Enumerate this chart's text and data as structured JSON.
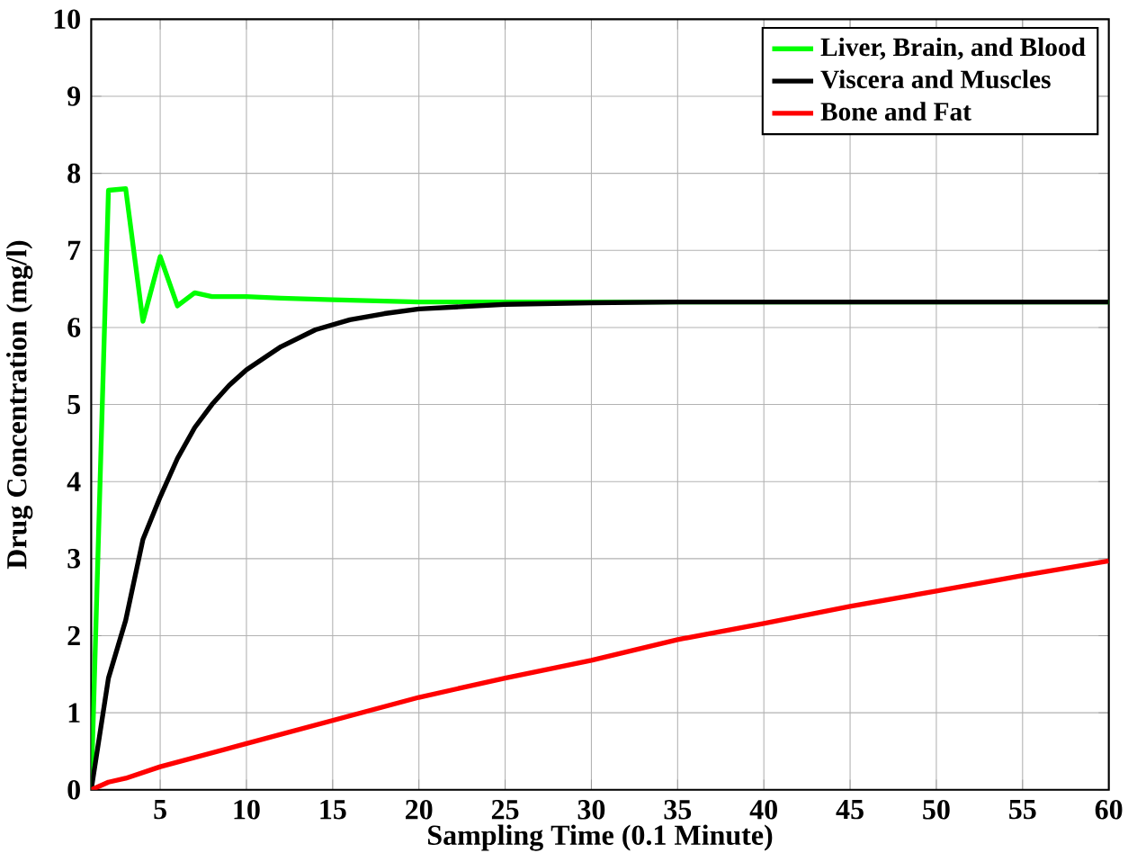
{
  "chart_data": {
    "type": "line",
    "xlabel": "Sampling Time (0.1 Minute)",
    "ylabel": "Drug Concentration (mg/l)",
    "xlim": [
      1,
      60
    ],
    "ylim": [
      0,
      10
    ],
    "xticks": [
      5,
      10,
      15,
      20,
      25,
      30,
      35,
      40,
      45,
      50,
      55,
      60
    ],
    "yticks": [
      0,
      1,
      2,
      3,
      4,
      5,
      6,
      7,
      8,
      9,
      10
    ],
    "grid": true,
    "legend": "top right",
    "marker": "none",
    "line_style": "solid",
    "series": [
      {
        "name": "Liver, Brain, and Blood",
        "color": "#00ff00",
        "x": [
          1,
          2,
          3,
          4,
          5,
          6,
          7,
          8,
          10,
          12,
          15,
          20,
          30,
          60
        ],
        "values": [
          0,
          7.78,
          7.8,
          6.08,
          6.92,
          6.28,
          6.45,
          6.4,
          6.4,
          6.38,
          6.36,
          6.33,
          6.33,
          6.33
        ]
      },
      {
        "name": "Viscera and Muscles",
        "color": "#000000",
        "x": [
          1,
          2,
          3,
          4,
          5,
          6,
          7,
          8,
          9,
          10,
          12,
          14,
          16,
          18,
          20,
          25,
          30,
          35,
          60
        ],
        "values": [
          0,
          1.45,
          2.2,
          3.25,
          3.8,
          4.3,
          4.7,
          5.0,
          5.25,
          5.45,
          5.75,
          5.97,
          6.1,
          6.18,
          6.24,
          6.3,
          6.32,
          6.33,
          6.33
        ]
      },
      {
        "name": "Bone and Fat",
        "color": "#ff0000",
        "x": [
          1,
          2,
          3,
          5,
          10,
          15,
          20,
          25,
          30,
          35,
          40,
          45,
          50,
          55,
          60
        ],
        "values": [
          0,
          0.1,
          0.15,
          0.3,
          0.6,
          0.9,
          1.2,
          1.45,
          1.68,
          1.95,
          2.16,
          2.38,
          2.58,
          2.78,
          2.97
        ]
      }
    ]
  }
}
